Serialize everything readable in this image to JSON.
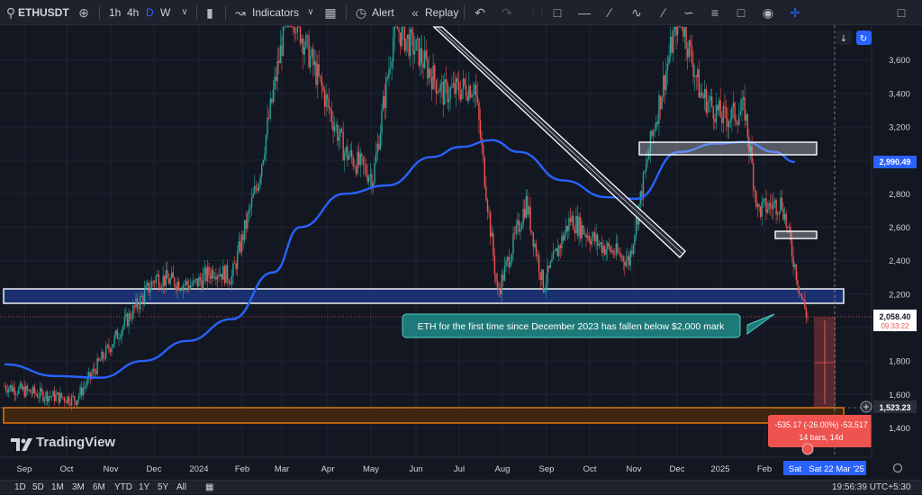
{
  "toolbar": {
    "symbol": "ETHUSDT",
    "intervals": [
      "1h",
      "4h",
      "D",
      "W"
    ],
    "active_interval": "D",
    "indicators_label": "Indicators",
    "alert_label": "Alert",
    "replay_label": "Replay"
  },
  "bottombar": {
    "ranges": [
      "1D",
      "5D",
      "1M",
      "3M",
      "6M",
      "YTD",
      "1Y",
      "5Y",
      "All"
    ],
    "clock": "19:56:39 UTC+5:30"
  },
  "logo": {
    "text": "TradingView"
  },
  "colors": {
    "background": "#131722",
    "ma": "#2962ff",
    "up": "#26a69a",
    "down": "#ef5350",
    "zone_blue": "#1e3a8a",
    "zone_orange": "#f57c00"
  },
  "chart_data": {
    "type": "candlestick",
    "x_labels": [
      "Sep",
      "Oct",
      "Nov",
      "Dec",
      "2024",
      "Feb",
      "Mar",
      "Apr",
      "May",
      "Jun",
      "Jul",
      "Aug",
      "Sep",
      "Oct",
      "Nov",
      "Dec",
      "2025",
      "Feb"
    ],
    "x_label_date": "Sat 22 Mar '25",
    "x_label_day": "Sat",
    "y_ticks": [
      3600,
      3400,
      3200,
      3000,
      2800,
      2600,
      2400,
      2200,
      2000,
      1800,
      1600,
      1400
    ],
    "ylim": [
      1300,
      3800
    ],
    "price_points": [
      [
        "2023-08-26",
        1650
      ],
      [
        "2023-09-20",
        1600
      ],
      [
        "2023-10-15",
        1570
      ],
      [
        "2023-11-01",
        1800
      ],
      [
        "2023-11-20",
        2050
      ],
      [
        "2023-12-10",
        2300
      ],
      [
        "2024-01-05",
        2250
      ],
      [
        "2024-01-20",
        2350
      ],
      [
        "2024-02-01",
        2300
      ],
      [
        "2024-02-20",
        2900
      ],
      [
        "2024-03-12",
        3950
      ],
      [
        "2024-04-01",
        3500
      ],
      [
        "2024-04-20",
        3050
      ],
      [
        "2024-05-10",
        2900
      ],
      [
        "2024-05-25",
        3800
      ],
      [
        "2024-06-10",
        3650
      ],
      [
        "2024-06-28",
        3400
      ],
      [
        "2024-07-20",
        3450
      ],
      [
        "2024-08-05",
        2200
      ],
      [
        "2024-08-25",
        2750
      ],
      [
        "2024-09-06",
        2250
      ],
      [
        "2024-09-25",
        2650
      ],
      [
        "2024-10-15",
        2500
      ],
      [
        "2024-11-05",
        2400
      ],
      [
        "2024-11-20",
        3100
      ],
      [
        "2024-12-10",
        3900
      ],
      [
        "2024-12-25",
        3400
      ],
      [
        "2025-01-10",
        3250
      ],
      [
        "2025-01-25",
        3300
      ],
      [
        "2025-02-03",
        2700
      ],
      [
        "2025-02-20",
        2750
      ],
      [
        "2025-03-05",
        2200
      ],
      [
        "2025-03-10",
        2058
      ]
    ],
    "ma_points": [
      [
        "2023-08-26",
        1780
      ],
      [
        "2023-10-01",
        1710
      ],
      [
        "2023-11-01",
        1700
      ],
      [
        "2023-12-01",
        1800
      ],
      [
        "2024-01-01",
        1920
      ],
      [
        "2024-02-01",
        2050
      ],
      [
        "2024-03-01",
        2330
      ],
      [
        "2024-03-20",
        2600
      ],
      [
        "2024-04-20",
        2800
      ],
      [
        "2024-05-20",
        2850
      ],
      [
        "2024-06-20",
        3020
      ],
      [
        "2024-07-10",
        3080
      ],
      [
        "2024-08-01",
        3120
      ],
      [
        "2024-08-20",
        3050
      ],
      [
        "2024-09-20",
        2880
      ],
      [
        "2024-10-20",
        2780
      ],
      [
        "2024-11-10",
        2770
      ],
      [
        "2024-12-10",
        3050
      ],
      [
        "2025-01-05",
        3100
      ],
      [
        "2025-01-25",
        3110
      ],
      [
        "2025-02-15",
        3050
      ],
      [
        "2025-03-01",
        2990
      ]
    ],
    "current_price": "2,058.40",
    "current_price_sub": "09:33:22",
    "ma_value": "2,990.49",
    "target_price": "1,523.23",
    "annotation": "ETH for the first time since December 2023 has fallen below $2,000 mark",
    "measure_line1": "-535.17 (-26.00%) -53,517",
    "measure_line2": "14 bars, 14d"
  }
}
